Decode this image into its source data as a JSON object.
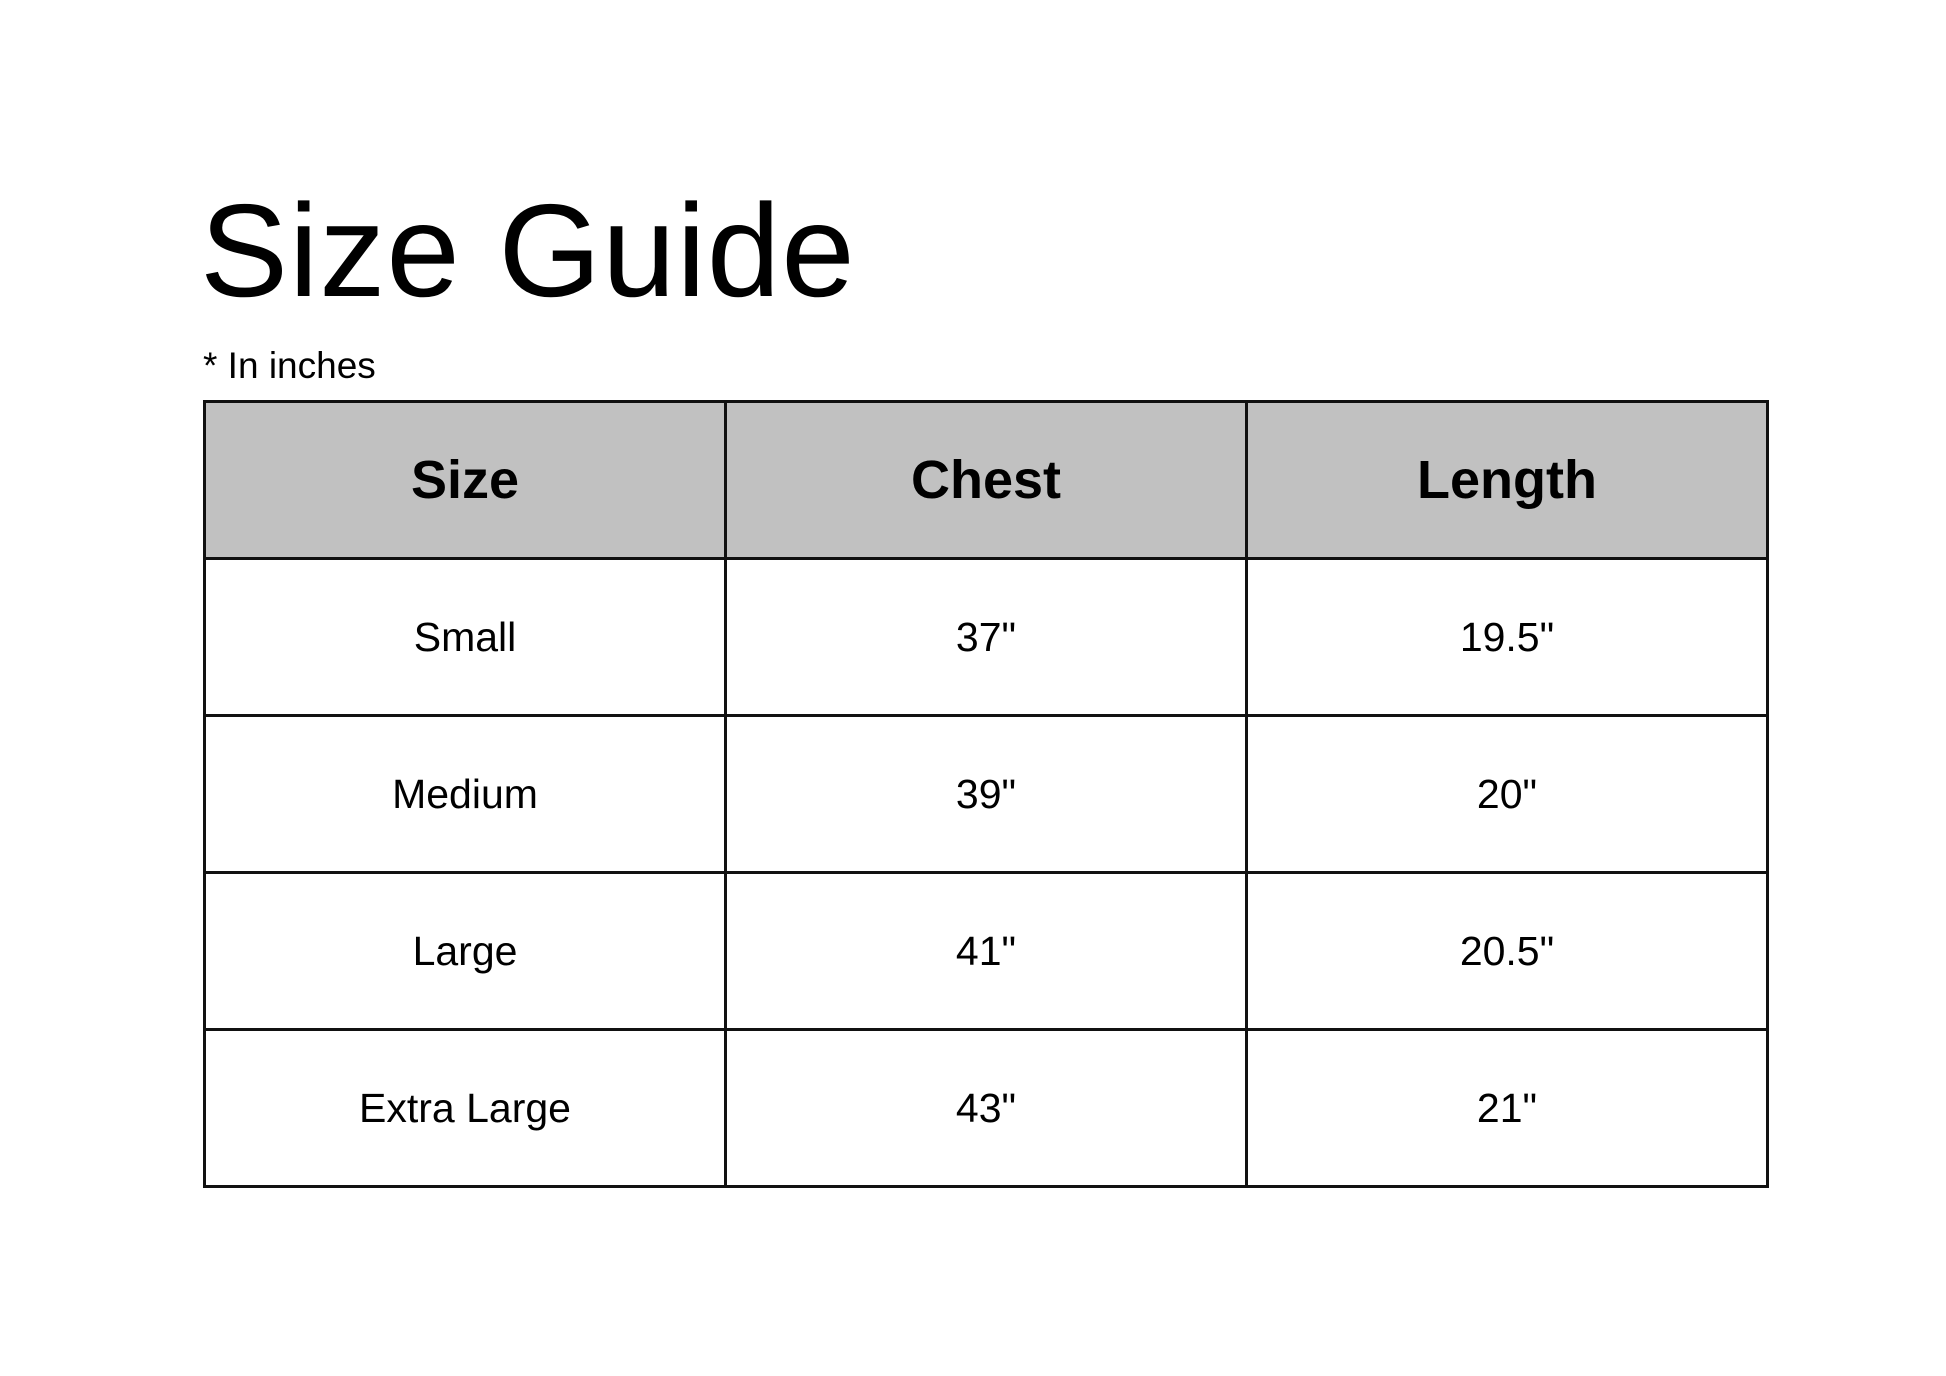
{
  "title": "Size Guide",
  "subtitle": "* In inches",
  "colors": {
    "header_bg": "#c1c1c1",
    "border": "#111111",
    "text": "#000000"
  },
  "table": {
    "headers": [
      "Size",
      "Chest",
      "Length"
    ],
    "rows": [
      [
        "Small",
        "37\"",
        "19.5\""
      ],
      [
        "Medium",
        "39\"",
        "20\""
      ],
      [
        "Large",
        "41\"",
        "20.5\""
      ],
      [
        "Extra Large",
        "43\"",
        "21\""
      ]
    ]
  }
}
